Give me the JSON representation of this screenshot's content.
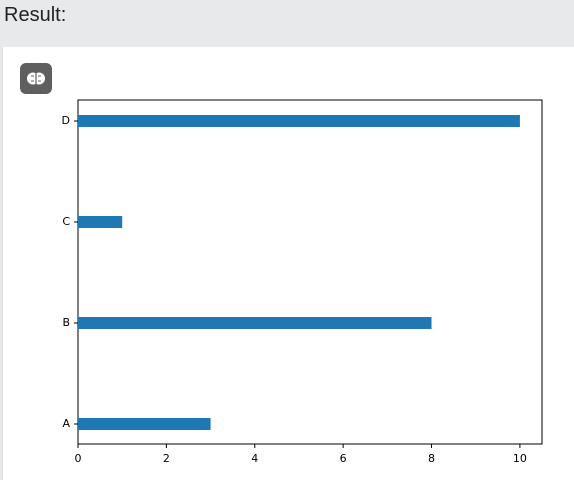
{
  "header": {
    "title": "Result:"
  },
  "chart_data": {
    "type": "barh",
    "categories": [
      "A",
      "B",
      "C",
      "D"
    ],
    "values": [
      3,
      8,
      1,
      10
    ],
    "color": "#1f77b4",
    "xlim": [
      0,
      10.5
    ],
    "xticks": [
      0,
      2,
      4,
      6,
      8,
      10
    ]
  }
}
